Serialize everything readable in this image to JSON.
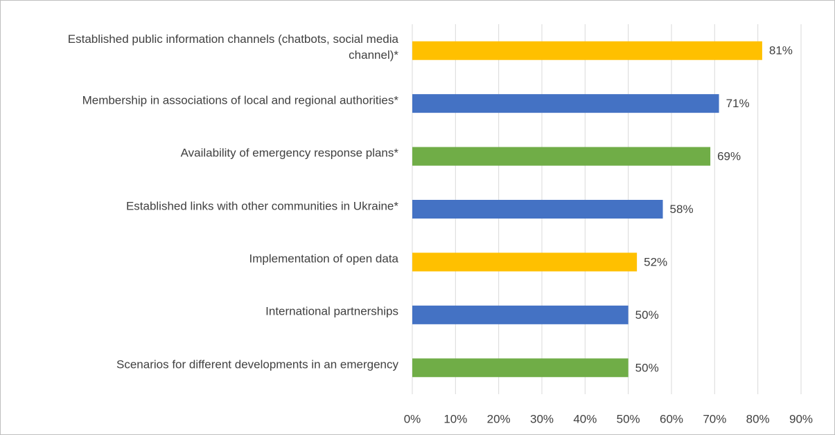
{
  "chart_data": {
    "type": "bar",
    "orientation": "horizontal",
    "categories": [
      "Established public information channels (chatbots, social media channel)*",
      "Membership in associations of local and regional authorities*",
      "Availability of emergency response plans*",
      "Established links with other communities in Ukraine*",
      "Implementation of open data",
      "International partnerships",
      "Scenarios for different developments in an emergency"
    ],
    "values": [
      81,
      71,
      69,
      58,
      52,
      50,
      50
    ],
    "value_labels": [
      "81%",
      "71%",
      "69%",
      "58%",
      "52%",
      "50%",
      "50%"
    ],
    "colors": [
      "#ffc000",
      "#4472c4",
      "#70ad47",
      "#4472c4",
      "#ffc000",
      "#4472c4",
      "#70ad47"
    ],
    "xlim": [
      0,
      90
    ],
    "xticks": [
      {
        "value": 0,
        "label": "0%"
      },
      {
        "value": 10,
        "label": "10%"
      },
      {
        "value": 20,
        "label": "20%"
      },
      {
        "value": 30,
        "label": "30%"
      },
      {
        "value": 40,
        "label": "40%"
      },
      {
        "value": 50,
        "label": "50%"
      },
      {
        "value": 60,
        "label": "60%"
      },
      {
        "value": 70,
        "label": "70%"
      },
      {
        "value": 80,
        "label": "80%"
      },
      {
        "value": 90,
        "label": "90%"
      }
    ],
    "grid": true
  }
}
